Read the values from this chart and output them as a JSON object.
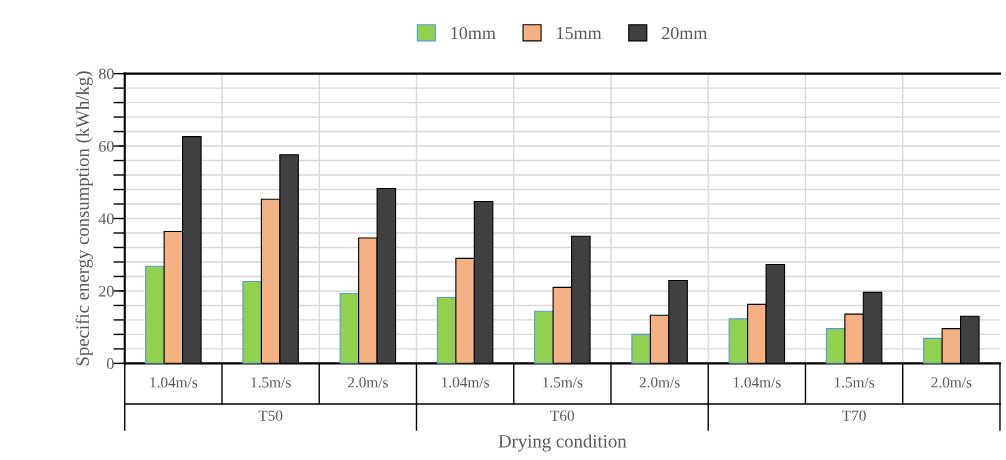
{
  "chart_data": {
    "type": "bar",
    "xlabel": "Drying condition",
    "ylabel": "Specific energy consumption (kWh/kg)",
    "categories": [
      "1.04m/s",
      "1.5m/s",
      "2.0m/s",
      "1.04m/s",
      "1.5m/s",
      "2.0m/s",
      "1.04m/s",
      "1.5m/s",
      "2.0m/s"
    ],
    "annotations": [
      "T50",
      "T60",
      "T70"
    ],
    "series": [
      {
        "name": "10mm",
        "color": "#92d050",
        "values": [
          26.8,
          22.6,
          19.3,
          18.2,
          14.4,
          8.0,
          12.3,
          9.6,
          6.9
        ]
      },
      {
        "name": "15mm",
        "color": "#f4b183",
        "values": [
          36.4,
          45.3,
          34.6,
          29.0,
          21.0,
          13.3,
          16.3,
          13.6,
          9.6
        ]
      },
      {
        "name": "20mm",
        "color": "#404040",
        "values": [
          62.6,
          57.6,
          48.3,
          44.7,
          35.1,
          22.9,
          27.3,
          19.6,
          13.0
        ]
      }
    ],
    "ylim": [
      0,
      80
    ],
    "yticks": [
      0,
      20,
      40,
      60,
      80
    ],
    "grid": true,
    "legend": "top"
  }
}
